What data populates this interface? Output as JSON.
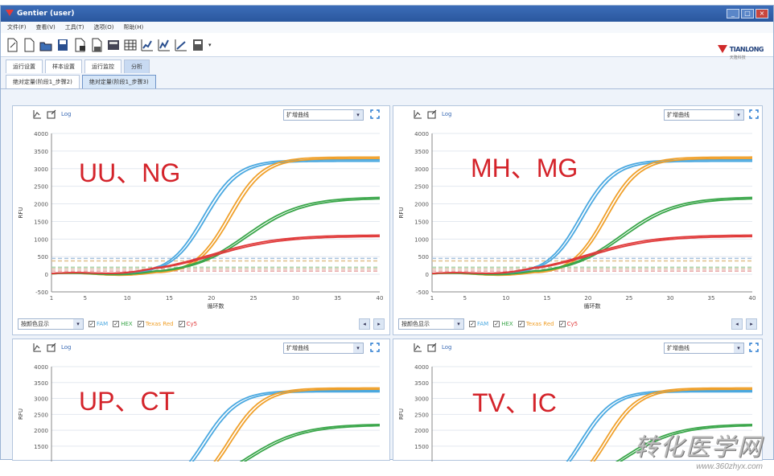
{
  "window": {
    "title": "Gentier (user)"
  },
  "menu": [
    "文件(F)",
    "查看(V)",
    "工具(T)",
    "选项(O)",
    "帮助(H)"
  ],
  "brand": {
    "name": "TIANLONG",
    "sub": "天隆科技"
  },
  "main_tabs": [
    {
      "label": "运行设置",
      "active": false
    },
    {
      "label": "样本设置",
      "active": false
    },
    {
      "label": "运行监控",
      "active": false
    },
    {
      "label": "分析",
      "active": true
    }
  ],
  "sub_tabs": [
    {
      "label": "绝对定量(阶段1_步骤2)",
      "active": false
    },
    {
      "label": "绝对定量(阶段1_步骤3)",
      "active": true
    }
  ],
  "panels": [
    {
      "overlay": "UU、NG",
      "log_label": "Log",
      "curve_type": "扩增曲线",
      "display_mode": "按颜色显示",
      "channels": [
        "FAM",
        "HEX",
        "Texas Red",
        "Cy5"
      ],
      "xlabel": "循环数",
      "ylabel": "RFU"
    },
    {
      "overlay": "MH、MG",
      "log_label": "Log",
      "curve_type": "扩增曲线",
      "display_mode": "按颜色显示",
      "channels": [
        "FAM",
        "HEX",
        "Texas Red",
        "Cy5"
      ],
      "xlabel": "循环数",
      "ylabel": "RFU"
    },
    {
      "overlay": "UP、CT",
      "log_label": "Log",
      "curve_type": "扩增曲线",
      "ylabel": "RFU"
    },
    {
      "overlay": "TV、IC",
      "log_label": "Log",
      "curve_type": "扩增曲线",
      "ylabel": "RFU"
    }
  ],
  "channel_colors": {
    "FAM": "#4aa8e0",
    "HEX": "#3aa64a",
    "Texas Red": "#f0a02a",
    "Cy5": "#e03a3a"
  },
  "watermark": {
    "main": "转化医学网",
    "url": "www.360zhyx.com"
  },
  "chart_data": [
    {
      "type": "line",
      "x_ticks": [
        1,
        5,
        10,
        15,
        20,
        25,
        30,
        35,
        40
      ],
      "y_ticks": [
        -500,
        0,
        500,
        1000,
        1500,
        2000,
        2500,
        3000,
        3500,
        4000
      ],
      "xlim": [
        1,
        40
      ],
      "ylim": [
        -500,
        4000
      ],
      "xlabel": "循环数",
      "ylabel": "RFU",
      "series": [
        {
          "name": "FAM",
          "plateau": 3250,
          "mid": 19
        },
        {
          "name": "Texas Red",
          "plateau": 3330,
          "mid": 22
        },
        {
          "name": "HEX",
          "plateau": 2200,
          "mid": 24
        },
        {
          "name": "Cy5",
          "plateau": 1120,
          "mid": 20
        }
      ],
      "thresholds": [
        450,
        380,
        200,
        150,
        90
      ]
    },
    {
      "type": "line",
      "x_ticks": [
        1,
        5,
        10,
        15,
        20,
        25,
        30,
        35,
        40
      ],
      "y_ticks": [
        -500,
        0,
        500,
        1000,
        1500,
        2000,
        2500,
        3000,
        3500,
        4000
      ],
      "xlim": [
        1,
        40
      ],
      "ylim": [
        -500,
        4000
      ],
      "xlabel": "循环数",
      "ylabel": "RFU",
      "series": [
        {
          "name": "FAM",
          "plateau": 3250,
          "mid": 19
        },
        {
          "name": "Texas Red",
          "plateau": 3330,
          "mid": 22
        },
        {
          "name": "HEX",
          "plateau": 2200,
          "mid": 24
        },
        {
          "name": "Cy5",
          "plateau": 1120,
          "mid": 20
        }
      ],
      "thresholds": [
        450,
        380,
        200,
        150,
        90
      ]
    },
    {
      "type": "line",
      "y_ticks": [
        1500,
        2000,
        2500,
        3000,
        3500,
        4000
      ],
      "ylim": [
        -500,
        4000
      ],
      "ylabel": "RFU",
      "series": [
        {
          "name": "FAM",
          "plateau": 3250,
          "mid": 19
        },
        {
          "name": "Texas Red",
          "plateau": 3330,
          "mid": 22
        },
        {
          "name": "HEX",
          "plateau": 2200,
          "mid": 24
        }
      ]
    },
    {
      "type": "line",
      "y_ticks": [
        1500,
        2000,
        2500,
        3000,
        3500,
        4000
      ],
      "ylim": [
        -500,
        4000
      ],
      "ylabel": "RFU",
      "series": [
        {
          "name": "FAM",
          "plateau": 3250,
          "mid": 19
        },
        {
          "name": "Texas Red",
          "plateau": 3330,
          "mid": 22
        },
        {
          "name": "HEX",
          "plateau": 2200,
          "mid": 24
        }
      ]
    }
  ]
}
